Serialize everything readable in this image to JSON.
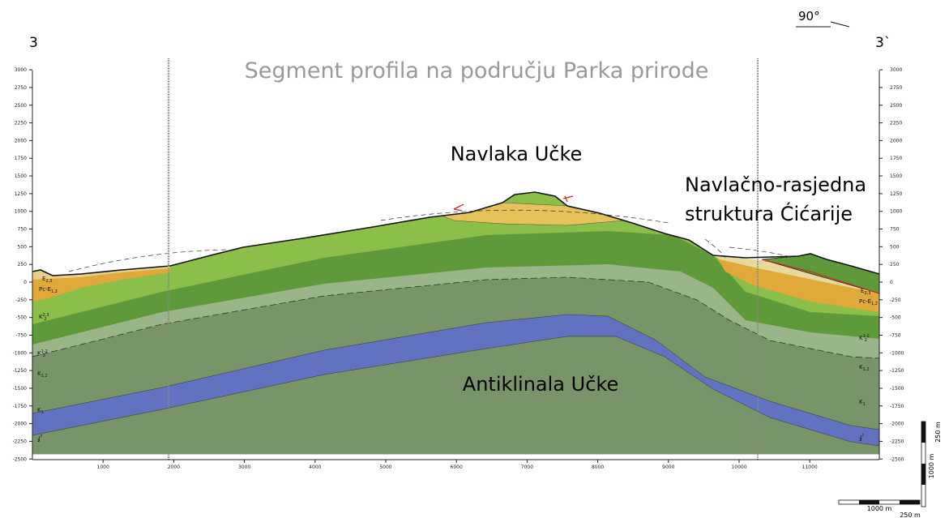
{
  "header": {
    "left_mark": "3",
    "right_mark": "3`",
    "orientation": "90°",
    "title": "Segment profila na području Parka prirode"
  },
  "labels": {
    "ucka_nappe": "Navlaka Učke",
    "cicarija": [
      "Navlačno-rasjedna",
      "struktura Ćićarije"
    ],
    "anticline": "Antiklinala Učke"
  },
  "axes": {
    "elevation_ticks": [
      3000,
      2750,
      2500,
      2250,
      2000,
      1750,
      1500,
      1250,
      1000,
      750,
      500,
      250,
      0,
      -250,
      -500,
      -750,
      -1000,
      -1250,
      -1500,
      -1750,
      -2000,
      -2250,
      -2500
    ],
    "distance_ticks": [
      1000,
      2000,
      3000,
      4000,
      5000,
      6000,
      7000,
      8000,
      9000,
      10000,
      11000
    ]
  },
  "layers_left": [
    {
      "base": "E",
      "sub": "2,3"
    },
    {
      "base": "Pc-E",
      "sub": "1,2"
    },
    {
      "base": "K",
      "sub": "2",
      "sup": "2,3"
    },
    {
      "base": "K",
      "sub": "2",
      "sup": "1-2"
    },
    {
      "base": "K",
      "sub": "1,2"
    },
    {
      "base": "K",
      "sub": "1"
    },
    {
      "base": "J",
      "sub": "3",
      "sup": "?"
    }
  ],
  "layers_right": [
    {
      "base": "E",
      "sub": "2,3"
    },
    {
      "base": "Pc-E",
      "sub": "1,2"
    },
    {
      "base": "K",
      "sub": "2",
      "sup": "1-2"
    },
    {
      "base": "K",
      "sub": "1,2"
    },
    {
      "base": "K",
      "sub": "1"
    },
    {
      "base": "J",
      "sub": "3",
      "sup": "?"
    }
  ],
  "scale": {
    "horizontal": [
      "1000 m",
      "250 m"
    ],
    "vertical": [
      "1000 m",
      "250 m"
    ]
  }
}
